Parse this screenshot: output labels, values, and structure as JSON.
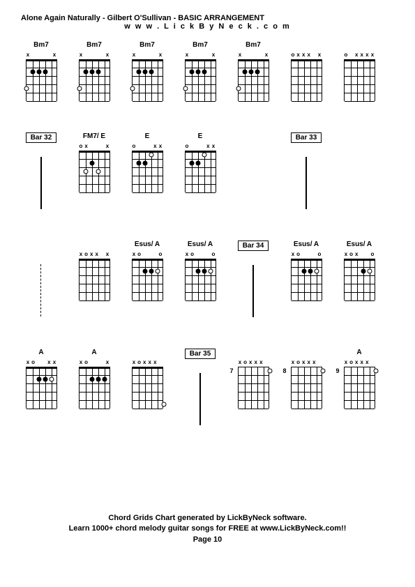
{
  "header": {
    "title": "Alone Again Naturally - Gilbert O'Sullivan - BASIC ARRANGEMENT",
    "subtitle": "w w w . L i c k B y N e c k . c o m"
  },
  "footer": {
    "line1": "Chord Grids Chart generated by LickByNeck software.",
    "line2": "Learn 1000+ chord melody guitar songs for FREE at www.LickByNeck.com!!",
    "line3": "Page 10"
  },
  "layout": {
    "string_count": 6,
    "fret_count": 5,
    "fretboard_width": 45,
    "fretboard_height": 60
  },
  "rows": [
    {
      "cells": [
        {
          "type": "chord",
          "label": "Bm7",
          "nut": true,
          "open": [
            "x",
            "",
            "",
            "",
            "",
            "x"
          ],
          "dots": [
            {
              "s": 2,
              "f": 2
            },
            {
              "s": 3,
              "f": 2
            },
            {
              "s": 4,
              "f": 2
            }
          ],
          "rings": [
            {
              "s": 1,
              "f": 4
            }
          ]
        },
        {
          "type": "chord",
          "label": "Bm7",
          "nut": true,
          "open": [
            "x",
            "",
            "",
            "",
            "",
            "x"
          ],
          "dots": [
            {
              "s": 2,
              "f": 2
            },
            {
              "s": 3,
              "f": 2
            },
            {
              "s": 4,
              "f": 2
            }
          ],
          "rings": [
            {
              "s": 1,
              "f": 4
            }
          ]
        },
        {
          "type": "chord",
          "label": "Bm7",
          "nut": true,
          "open": [
            "x",
            "",
            "",
            "",
            "",
            "x"
          ],
          "dots": [
            {
              "s": 2,
              "f": 2
            },
            {
              "s": 3,
              "f": 2
            },
            {
              "s": 4,
              "f": 2
            }
          ],
          "rings": [
            {
              "s": 1,
              "f": 4
            }
          ]
        },
        {
          "type": "chord",
          "label": "Bm7",
          "nut": true,
          "open": [
            "x",
            "",
            "",
            "",
            "",
            "x"
          ],
          "dots": [
            {
              "s": 2,
              "f": 2
            },
            {
              "s": 3,
              "f": 2
            },
            {
              "s": 4,
              "f": 2
            }
          ],
          "rings": [
            {
              "s": 1,
              "f": 4
            }
          ]
        },
        {
          "type": "chord",
          "label": "Bm7",
          "nut": true,
          "open": [
            "x",
            "",
            "",
            "",
            "",
            "x"
          ],
          "dots": [
            {
              "s": 2,
              "f": 2
            },
            {
              "s": 3,
              "f": 2
            },
            {
              "s": 4,
              "f": 2
            }
          ],
          "rings": [
            {
              "s": 1,
              "f": 4
            }
          ]
        },
        {
          "type": "chord",
          "label": "",
          "nut": true,
          "open": [
            "o",
            "x",
            "x",
            "x",
            "",
            "x"
          ],
          "dots": [],
          "rings": []
        },
        {
          "type": "chord",
          "label": "",
          "nut": true,
          "open": [
            "o",
            "",
            "x",
            "x",
            "x",
            "x"
          ],
          "dots": [],
          "rings": []
        }
      ]
    },
    {
      "cells": [
        {
          "type": "bar",
          "label": "Bar 32"
        },
        {
          "type": "chord",
          "label": "FM7/ E",
          "nut": true,
          "open": [
            "o",
            "x",
            "",
            "",
            "",
            "x"
          ],
          "dots": [
            {
              "s": 3,
              "f": 2
            }
          ],
          "rings": [
            {
              "s": 2,
              "f": 3
            },
            {
              "s": 4,
              "f": 3
            }
          ]
        },
        {
          "type": "chord",
          "label": "E",
          "nut": true,
          "open": [
            "o",
            "",
            "",
            "",
            "x",
            "x"
          ],
          "dots": [
            {
              "s": 2,
              "f": 2
            },
            {
              "s": 3,
              "f": 2
            }
          ],
          "rings": [
            {
              "s": 4,
              "f": 1
            }
          ]
        },
        {
          "type": "chord",
          "label": "E",
          "nut": true,
          "open": [
            "o",
            "",
            "",
            "",
            "x",
            "x"
          ],
          "dots": [
            {
              "s": 2,
              "f": 2
            },
            {
              "s": 3,
              "f": 2
            }
          ],
          "rings": [
            {
              "s": 4,
              "f": 1
            }
          ]
        },
        {
          "type": "spacer"
        },
        {
          "type": "bar",
          "label": "Bar 33"
        },
        {
          "type": "spacer"
        }
      ]
    },
    {
      "cells": [
        {
          "type": "dashed"
        },
        {
          "type": "chord",
          "label": "",
          "nut": true,
          "open": [
            "x",
            "o",
            "x",
            "x",
            "",
            "x"
          ],
          "dots": [],
          "rings": []
        },
        {
          "type": "chord",
          "label": "Esus/ A",
          "nut": true,
          "open": [
            "x",
            "o",
            "",
            "",
            "",
            "o"
          ],
          "dots": [
            {
              "s": 3,
              "f": 2
            },
            {
              "s": 4,
              "f": 2
            }
          ],
          "rings": [
            {
              "s": 5,
              "f": 2
            }
          ]
        },
        {
          "type": "chord",
          "label": "Esus/ A",
          "nut": true,
          "open": [
            "x",
            "o",
            "",
            "",
            "",
            "o"
          ],
          "dots": [
            {
              "s": 3,
              "f": 2
            },
            {
              "s": 4,
              "f": 2
            }
          ],
          "rings": [
            {
              "s": 5,
              "f": 2
            }
          ]
        },
        {
          "type": "bar",
          "label": "Bar 34"
        },
        {
          "type": "chord",
          "label": "Esus/ A",
          "nut": true,
          "open": [
            "x",
            "o",
            "",
            "",
            "",
            "o"
          ],
          "dots": [
            {
              "s": 3,
              "f": 2
            },
            {
              "s": 4,
              "f": 2
            }
          ],
          "rings": [
            {
              "s": 5,
              "f": 2
            }
          ]
        },
        {
          "type": "chord",
          "label": "Esus/ A",
          "nut": true,
          "open": [
            "x",
            "o",
            "x",
            "",
            "",
            "o"
          ],
          "dots": [
            {
              "s": 4,
              "f": 2
            }
          ],
          "rings": [
            {
              "s": 5,
              "f": 2
            }
          ]
        }
      ]
    },
    {
      "cells": [
        {
          "type": "chord",
          "label": "A",
          "nut": true,
          "open": [
            "x",
            "o",
            "",
            "",
            "x",
            "x"
          ],
          "dots": [
            {
              "s": 3,
              "f": 2
            },
            {
              "s": 4,
              "f": 2
            }
          ],
          "rings": [
            {
              "s": 5,
              "f": 2
            }
          ]
        },
        {
          "type": "chord",
          "label": "A",
          "nut": true,
          "open": [
            "x",
            "o",
            "",
            "",
            "",
            "x"
          ],
          "dots": [
            {
              "s": 3,
              "f": 2
            },
            {
              "s": 4,
              "f": 2
            },
            {
              "s": 5,
              "f": 2
            }
          ],
          "rings": []
        },
        {
          "type": "chord",
          "label": "",
          "nut": true,
          "open": [
            "x",
            "o",
            "x",
            "x",
            "x",
            ""
          ],
          "dots": [],
          "rings": [
            {
              "s": 6,
              "f": 5
            }
          ]
        },
        {
          "type": "bar",
          "label": "Bar 35"
        },
        {
          "type": "chord",
          "label": "",
          "nut": false,
          "fret_num": "7",
          "open": [
            "x",
            "o",
            "x",
            "x",
            "x",
            ""
          ],
          "dots": [],
          "rings": [
            {
              "s": 6,
              "f": 1
            }
          ]
        },
        {
          "type": "chord",
          "label": "",
          "nut": false,
          "fret_num": "8",
          "open": [
            "x",
            "o",
            "x",
            "x",
            "x",
            ""
          ],
          "dots": [],
          "rings": [
            {
              "s": 6,
              "f": 1
            }
          ]
        },
        {
          "type": "chord",
          "label": "A",
          "nut": false,
          "fret_num": "9",
          "open": [
            "x",
            "o",
            "x",
            "x",
            "x",
            ""
          ],
          "dots": [],
          "rings": [
            {
              "s": 6,
              "f": 1
            }
          ]
        }
      ]
    }
  ]
}
